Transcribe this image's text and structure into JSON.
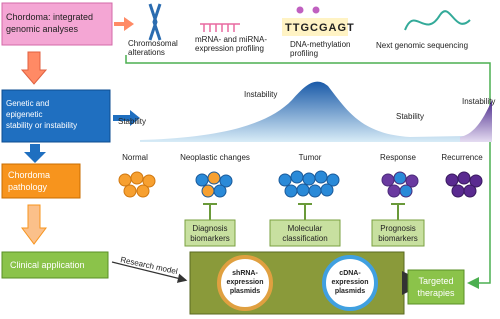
{
  "inputs": {
    "title": [
      "Chordoma: integrated",
      "genomic analyses"
    ],
    "items": [
      {
        "label": [
          "Chromosomal",
          "alterations"
        ]
      },
      {
        "label": [
          "mRNA- and miRNA-",
          "expression profiling"
        ]
      },
      {
        "sequence": "TTGCGAGT",
        "label": [
          "DNA-methylation",
          "profiling"
        ]
      },
      {
        "label": [
          "Next genomic sequencing"
        ]
      }
    ]
  },
  "genetics": {
    "title": [
      "Genetic and",
      "epigenetic",
      "stability or instability"
    ],
    "curve_labels": [
      "Stability",
      "Instability",
      "Stability",
      "Instability"
    ]
  },
  "pathology": {
    "title": [
      "Chordoma",
      "pathology"
    ],
    "stages": [
      "Normal",
      "Neoplastic changes",
      "Tumor",
      "Response",
      "Recurrence"
    ],
    "biomarkers": [
      [
        "Diagnosis",
        "biomarkers"
      ],
      [
        "Molecular",
        "classification"
      ],
      [
        "Prognosis",
        "biomarkers"
      ]
    ]
  },
  "clinical": {
    "title": "Clinical application",
    "research_model": "Research model",
    "plasmids": [
      [
        "shRNA-",
        "expression",
        "plasmids"
      ],
      [
        "cDNA-",
        "expression",
        "plasmids"
      ]
    ],
    "outcome": [
      "Targeted",
      "therapies"
    ]
  }
}
